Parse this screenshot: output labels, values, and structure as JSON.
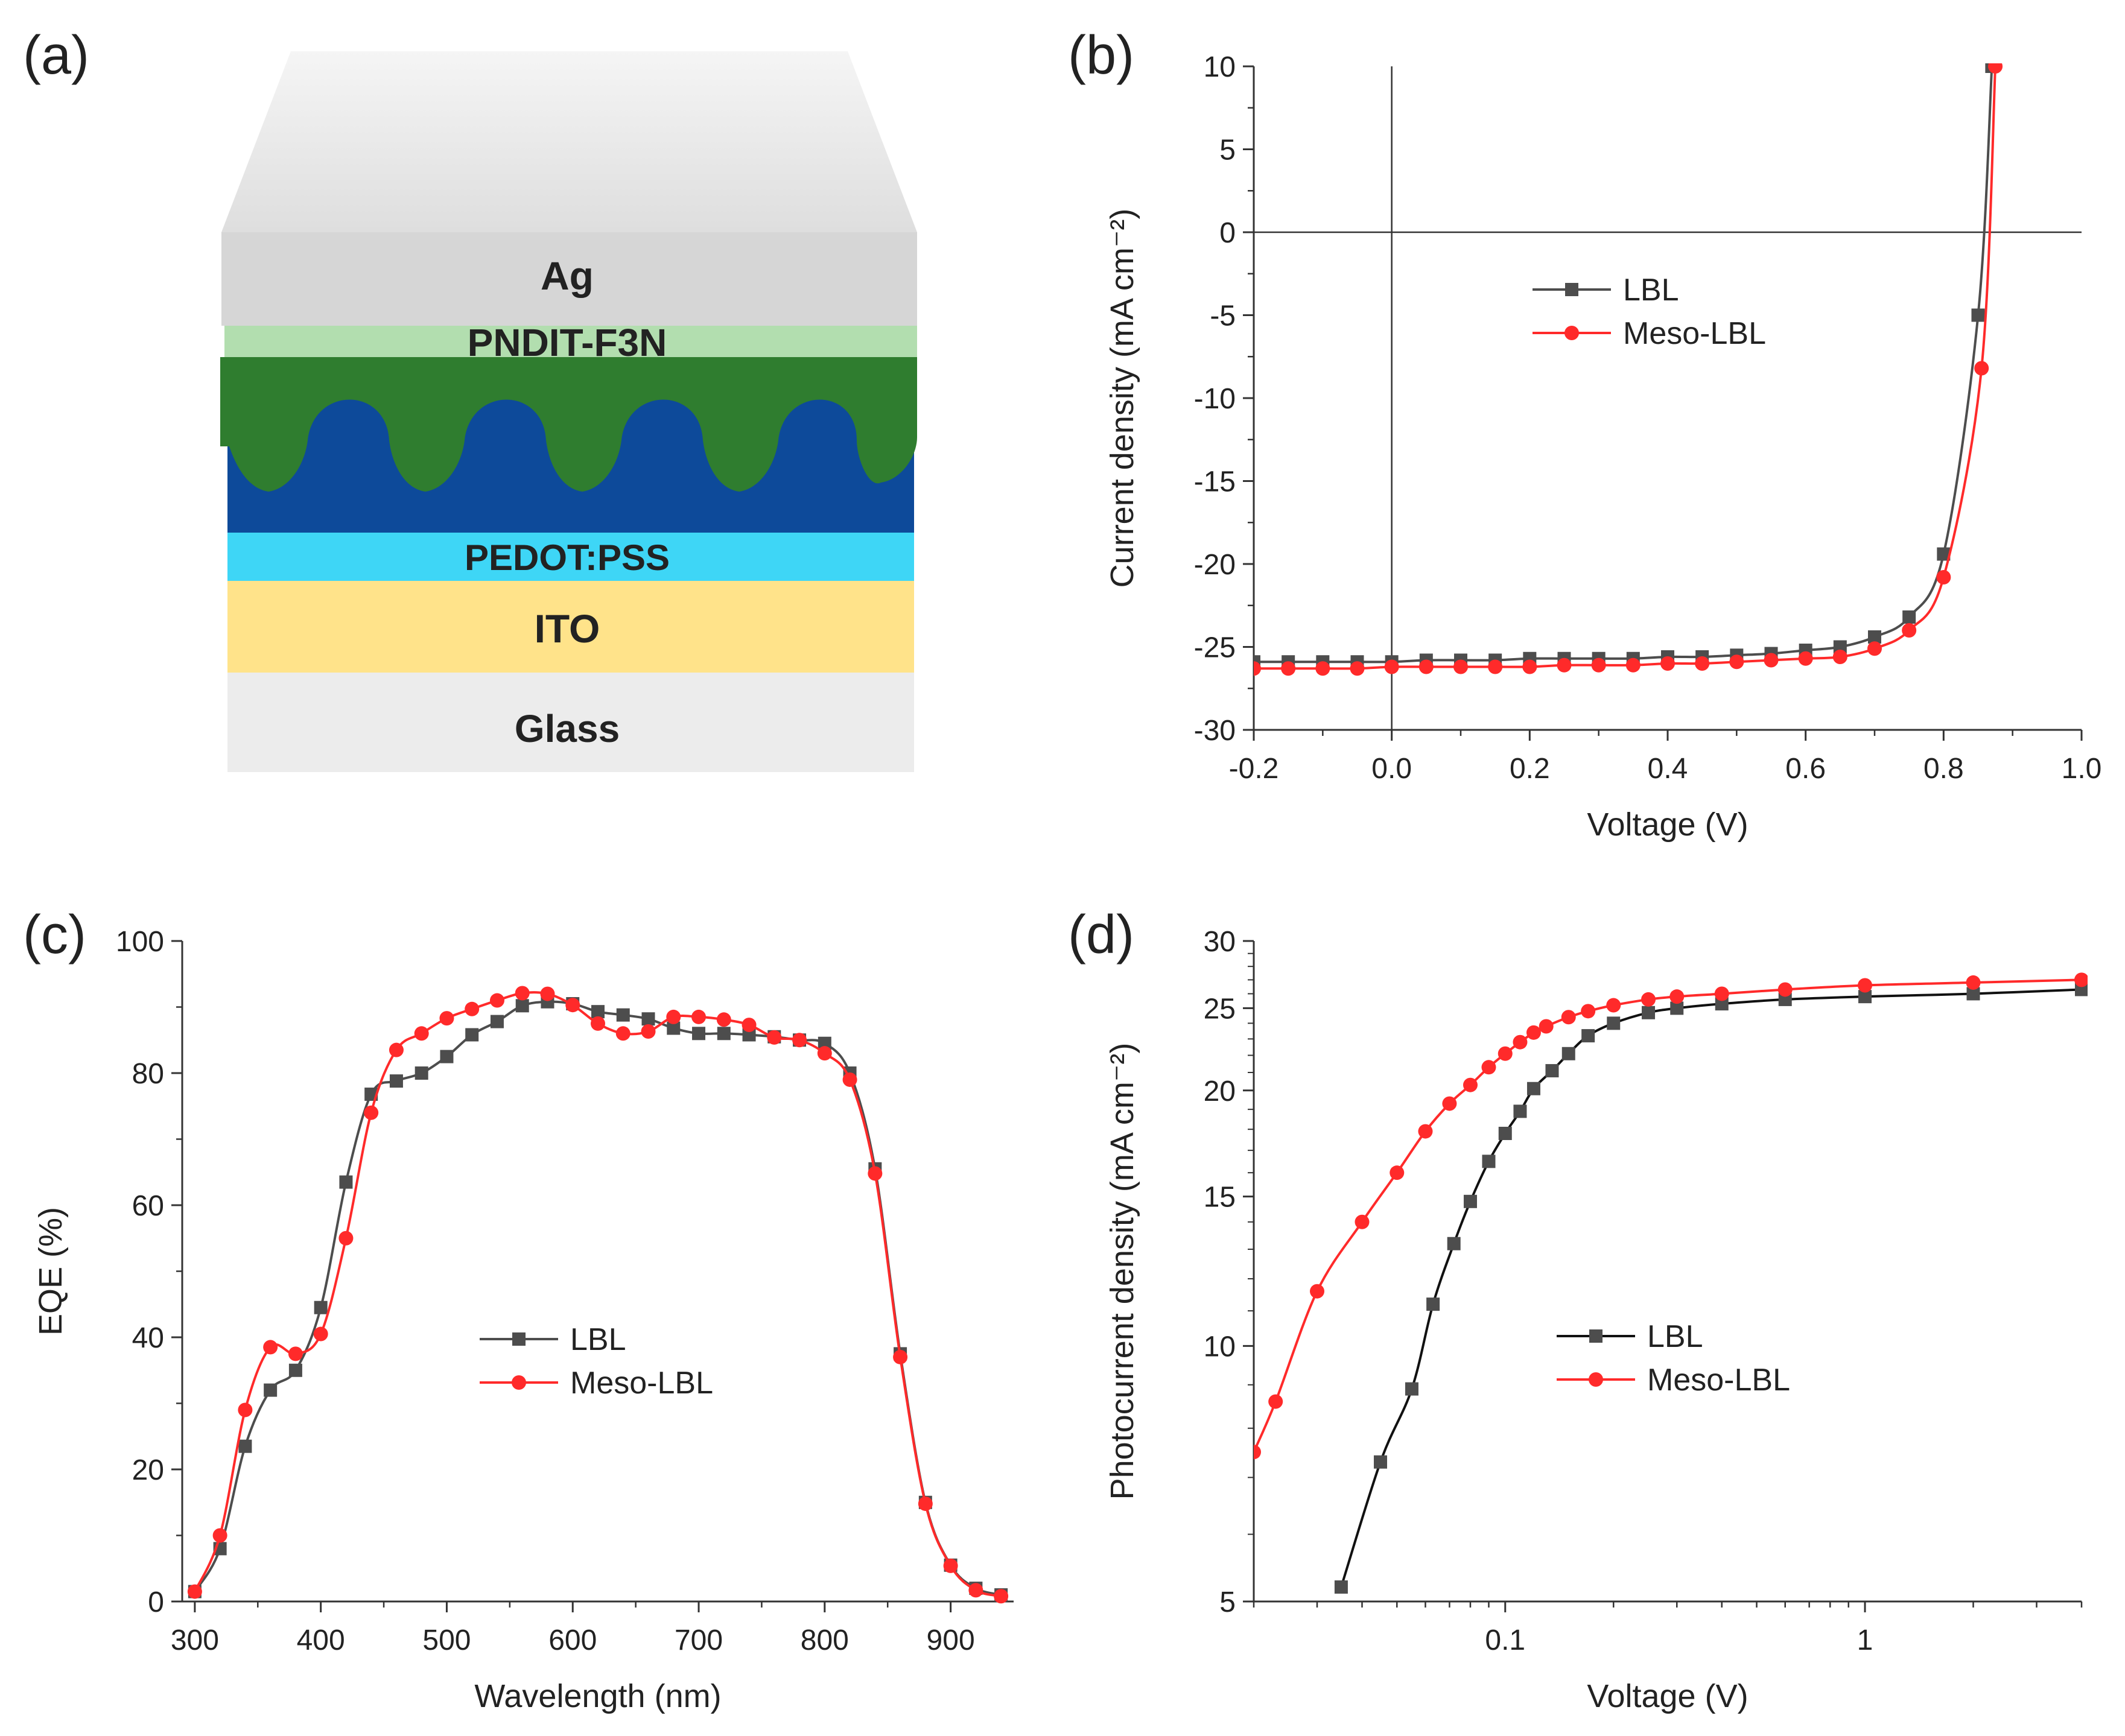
{
  "panel_labels": [
    "(a)",
    "(b)",
    "(c)",
    "(d)"
  ],
  "device": {
    "layers": [
      {
        "name": "Ag",
        "color": "#d9d9d9"
      },
      {
        "name": "PNDIT-F3N",
        "color": "#b0dcb0"
      },
      {
        "name": "",
        "color": "#2e7d32"
      },
      {
        "name": "",
        "color": "#0d47a1"
      },
      {
        "name": "PEDOT:PSS",
        "color": "#40d8f8"
      },
      {
        "name": "ITO",
        "color": "#ffe082"
      },
      {
        "name": "Glass",
        "color": "#ececec"
      }
    ]
  },
  "colors": {
    "lbl": "#4d4d4d",
    "meso": "#ff2a2a"
  },
  "chart_data": [
    {
      "id": "b",
      "type": "line",
      "xlabel": "Voltage (V)",
      "ylabel": "Current density (mA cm⁻²)",
      "xlim": [
        -0.2,
        1.0
      ],
      "ylim": [
        -30,
        10
      ],
      "xticks": [
        -0.2,
        0.0,
        0.2,
        0.4,
        0.6,
        0.8,
        1.0
      ],
      "xticklabels": [
        "-0.2",
        "0.0",
        "0.2",
        "0.4",
        "0.6",
        "0.8",
        "1.0"
      ],
      "yticks": [
        -30,
        -25,
        -20,
        -15,
        -10,
        -5,
        0,
        5,
        10
      ],
      "yticklabels": [
        "-30",
        "-25",
        "-20",
        "-15",
        "-10",
        "-5",
        "0",
        "5",
        "10"
      ],
      "reference_lines": {
        "x": 0,
        "y": 0
      },
      "legend": "center",
      "series": [
        {
          "name": "LBL",
          "marker": "square",
          "x": [
            -0.2,
            -0.15,
            -0.1,
            -0.05,
            0.0,
            0.05,
            0.1,
            0.15,
            0.2,
            0.25,
            0.3,
            0.35,
            0.4,
            0.45,
            0.5,
            0.55,
            0.6,
            0.65,
            0.7,
            0.75,
            0.8,
            0.85,
            0.87
          ],
          "y": [
            -25.9,
            -25.9,
            -25.9,
            -25.9,
            -25.9,
            -25.8,
            -25.8,
            -25.8,
            -25.7,
            -25.7,
            -25.7,
            -25.7,
            -25.6,
            -25.6,
            -25.5,
            -25.4,
            -25.2,
            -25.0,
            -24.4,
            -23.2,
            -19.4,
            -5.0,
            10
          ]
        },
        {
          "name": "Meso-LBL",
          "marker": "circle",
          "x": [
            -0.2,
            -0.15,
            -0.1,
            -0.05,
            0.0,
            0.05,
            0.1,
            0.15,
            0.2,
            0.25,
            0.3,
            0.35,
            0.4,
            0.45,
            0.5,
            0.55,
            0.6,
            0.65,
            0.7,
            0.75,
            0.8,
            0.855,
            0.875
          ],
          "y": [
            -26.3,
            -26.3,
            -26.3,
            -26.3,
            -26.2,
            -26.2,
            -26.2,
            -26.2,
            -26.2,
            -26.1,
            -26.1,
            -26.1,
            -26.0,
            -26.0,
            -25.9,
            -25.8,
            -25.7,
            -25.6,
            -25.1,
            -24.0,
            -20.8,
            -8.2,
            10
          ]
        }
      ]
    },
    {
      "id": "c",
      "type": "line",
      "xlabel": "Wavelength (nm)",
      "ylabel": "EQE (%)",
      "xlim": [
        290,
        950
      ],
      "ylim": [
        0,
        100
      ],
      "xticks": [
        300,
        400,
        500,
        600,
        700,
        800,
        900
      ],
      "xticklabels": [
        "300",
        "400",
        "500",
        "600",
        "700",
        "800",
        "900"
      ],
      "yticks": [
        0,
        20,
        40,
        60,
        80,
        100
      ],
      "yticklabels": [
        "0",
        "20",
        "40",
        "60",
        "80",
        "100"
      ],
      "legend": "center",
      "series": [
        {
          "name": "LBL",
          "marker": "square",
          "x": [
            300,
            320,
            340,
            360,
            380,
            400,
            420,
            440,
            460,
            480,
            500,
            520,
            540,
            560,
            580,
            600,
            620,
            640,
            660,
            680,
            700,
            720,
            740,
            760,
            780,
            800,
            820,
            840,
            860,
            880,
            900,
            920,
            940
          ],
          "y": [
            1.5,
            8,
            23.5,
            32,
            35,
            44.5,
            63.5,
            76.8,
            78.8,
            80,
            82.5,
            85.8,
            87.8,
            90.2,
            90.8,
            90.5,
            89.3,
            88.8,
            88.2,
            86.8,
            86,
            86,
            85.8,
            85.5,
            85,
            84.5,
            80,
            65.5,
            37.5,
            15,
            5.5,
            2,
            1
          ]
        },
        {
          "name": "Meso-LBL",
          "marker": "circle",
          "x": [
            300,
            320,
            340,
            360,
            380,
            400,
            420,
            440,
            460,
            480,
            500,
            520,
            540,
            560,
            580,
            600,
            620,
            640,
            660,
            680,
            700,
            720,
            740,
            760,
            780,
            800,
            820,
            840,
            860,
            880,
            900,
            920,
            940
          ],
          "y": [
            1.5,
            10,
            29,
            38.5,
            37.5,
            40.5,
            55,
            74,
            83.5,
            86,
            88.3,
            89.7,
            91,
            92.1,
            92,
            90.3,
            87.5,
            86,
            86.3,
            88.5,
            88.5,
            88.1,
            87.3,
            85.4,
            85,
            83,
            79,
            64.8,
            37,
            14.8,
            5.4,
            1.7,
            0.8
          ]
        }
      ]
    },
    {
      "id": "d",
      "type": "line",
      "xscale": "log",
      "yscale": "log",
      "xlabel": "Voltage (V)",
      "ylabel": "Photocurrent density (mA cm⁻²)",
      "xlim": [
        0.02,
        4
      ],
      "ylim": [
        5,
        30
      ],
      "xticks": [
        0.1,
        1
      ],
      "xticklabels": [
        "0.1",
        "1"
      ],
      "yticks": [
        5,
        10,
        15,
        20,
        25,
        30
      ],
      "yticklabels": [
        "5",
        "10",
        "15",
        "20",
        "25",
        "30"
      ],
      "legend": "center-right",
      "series": [
        {
          "name": "LBL",
          "marker": "square",
          "line_color": "#111111",
          "x": [
            0.035,
            0.045,
            0.055,
            0.063,
            0.072,
            0.08,
            0.09,
            0.1,
            0.11,
            0.12,
            0.135,
            0.15,
            0.17,
            0.2,
            0.25,
            0.3,
            0.4,
            0.6,
            1.0,
            2.0,
            4.0
          ],
          "y": [
            5.2,
            7.3,
            8.9,
            11.2,
            13.2,
            14.8,
            16.5,
            17.8,
            18.9,
            20.1,
            21.1,
            22.1,
            23.2,
            24.0,
            24.7,
            25.0,
            25.3,
            25.6,
            25.8,
            26.0,
            26.3
          ]
        },
        {
          "name": "Meso-LBL",
          "marker": "circle",
          "x": [
            0.02,
            0.023,
            0.03,
            0.04,
            0.05,
            0.06,
            0.07,
            0.08,
            0.09,
            0.1,
            0.11,
            0.12,
            0.13,
            0.15,
            0.17,
            0.2,
            0.25,
            0.3,
            0.4,
            0.6,
            1.0,
            2.0,
            4.0
          ],
          "y": [
            7.5,
            8.6,
            11.6,
            14.0,
            16.0,
            17.9,
            19.3,
            20.3,
            21.3,
            22.1,
            22.8,
            23.4,
            23.8,
            24.4,
            24.8,
            25.2,
            25.6,
            25.8,
            26.0,
            26.3,
            26.6,
            26.8,
            27.0
          ]
        }
      ]
    }
  ]
}
